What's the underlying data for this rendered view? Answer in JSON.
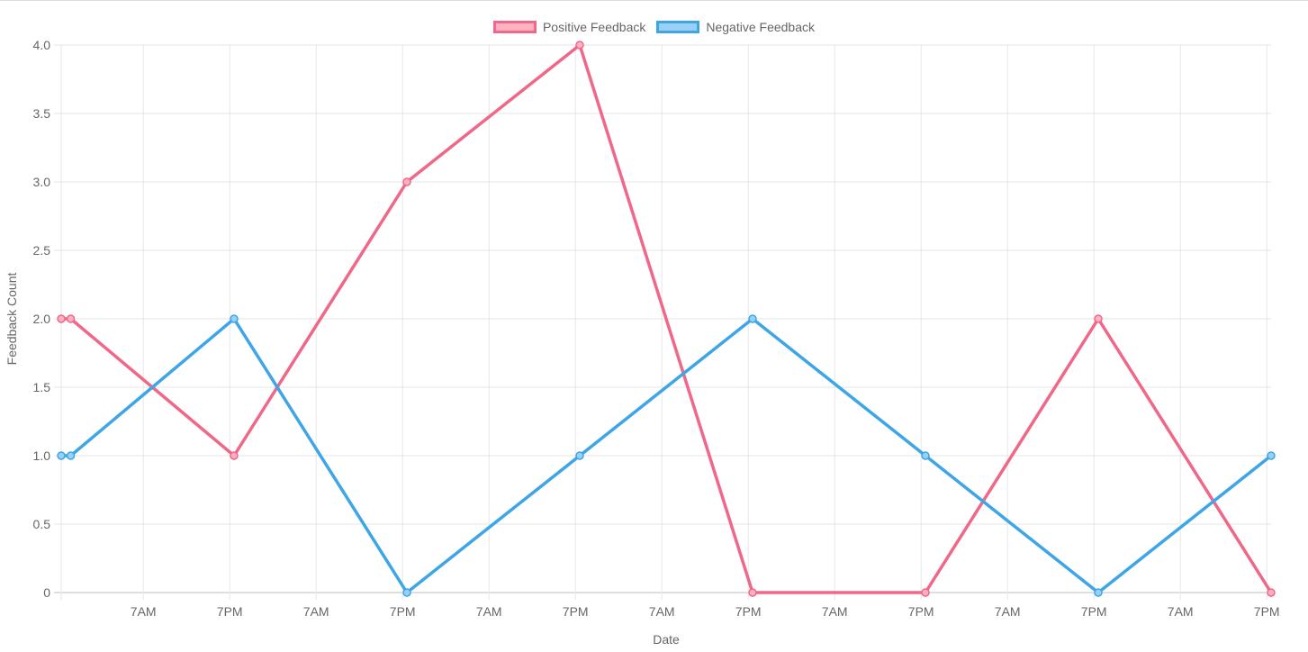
{
  "chart_data": {
    "type": "line",
    "xlabel": "Date",
    "ylabel": "Feedback Count",
    "ylim": [
      0,
      4
    ],
    "y_ticks": [
      "0",
      "0.5",
      "1.0",
      "1.5",
      "2.0",
      "2.5",
      "3.0",
      "3.5",
      "4.0"
    ],
    "x_ticks": [
      "7AM",
      "7PM",
      "7AM",
      "7PM",
      "7AM",
      "7PM",
      "7AM",
      "7PM",
      "7AM",
      "7PM",
      "7AM",
      "7PM",
      "7AM",
      "7PM"
    ],
    "grid": true,
    "legend_position": "top",
    "series": [
      {
        "name": "Positive Feedback",
        "color": "#f06889",
        "fill": "#ffb1c1",
        "points": [
          [
            0,
            2
          ],
          [
            0.055,
            2
          ],
          [
            1,
            1
          ],
          [
            2,
            3
          ],
          [
            3,
            4
          ],
          [
            4,
            0
          ],
          [
            5,
            0
          ],
          [
            6,
            2
          ],
          [
            7,
            0
          ]
        ]
      },
      {
        "name": "Negative Feedback",
        "color": "#3ea6e6",
        "fill": "#9ad0f5",
        "points": [
          [
            0,
            1
          ],
          [
            0.055,
            1
          ],
          [
            1,
            2
          ],
          [
            2,
            0
          ],
          [
            3,
            1
          ],
          [
            4,
            2
          ],
          [
            5,
            1
          ],
          [
            6,
            0
          ],
          [
            7,
            1
          ]
        ]
      }
    ]
  }
}
